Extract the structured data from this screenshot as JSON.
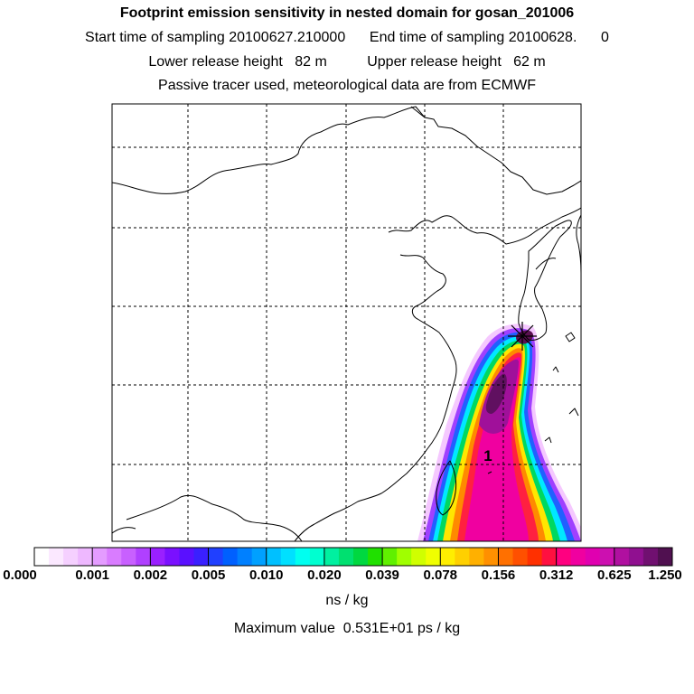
{
  "title": "Footprint emission sensitivity in nested domain for gosan_201006",
  "sampling": {
    "start_label": "Start time of sampling",
    "start_value": "20100627.210000",
    "end_label": "End time of sampling",
    "end_value": "20100628.",
    "end_suffix": "0",
    "line": "Start time of sampling 20100627.210000      End time of sampling 20100628.      0"
  },
  "release": {
    "line": "Lower release height   82 m          Upper release height   62 m"
  },
  "tracer_note": "Passive tracer used, meteorological data are from ECMWF",
  "plume_label": "1",
  "colorbar": {
    "tick_labels": [
      "0.000",
      "0.001",
      "0.002",
      "0.005",
      "0.010",
      "0.020",
      "0.039",
      "0.078",
      "0.156",
      "0.312",
      "0.625",
      "1.250"
    ],
    "colors": [
      "#ffffff",
      "#fbe8ff",
      "#f5d0ff",
      "#eeb8ff",
      "#e49cff",
      "#d97cff",
      "#c860ff",
      "#b040ff",
      "#9a20ff",
      "#7a10ff",
      "#5a10ff",
      "#3a20ff",
      "#2040ff",
      "#0060ff",
      "#0080ff",
      "#00a0ff",
      "#00c0ff",
      "#00e0ff",
      "#00fff0",
      "#00ffd0",
      "#00f0a0",
      "#00e070",
      "#00d840",
      "#20e000",
      "#60f000",
      "#a0ff00",
      "#d0ff00",
      "#f0ff00",
      "#ffee00",
      "#ffd000",
      "#ffb000",
      "#ff9000",
      "#ff7000",
      "#ff5000",
      "#ff3000",
      "#ff1040",
      "#ff0080",
      "#f000a0",
      "#e000b0",
      "#cc10b0",
      "#b010a0",
      "#901090",
      "#701070",
      "#501050"
    ],
    "units": "ns / kg"
  },
  "max_value": "Maximum value  0.531E+01 ps / kg"
}
